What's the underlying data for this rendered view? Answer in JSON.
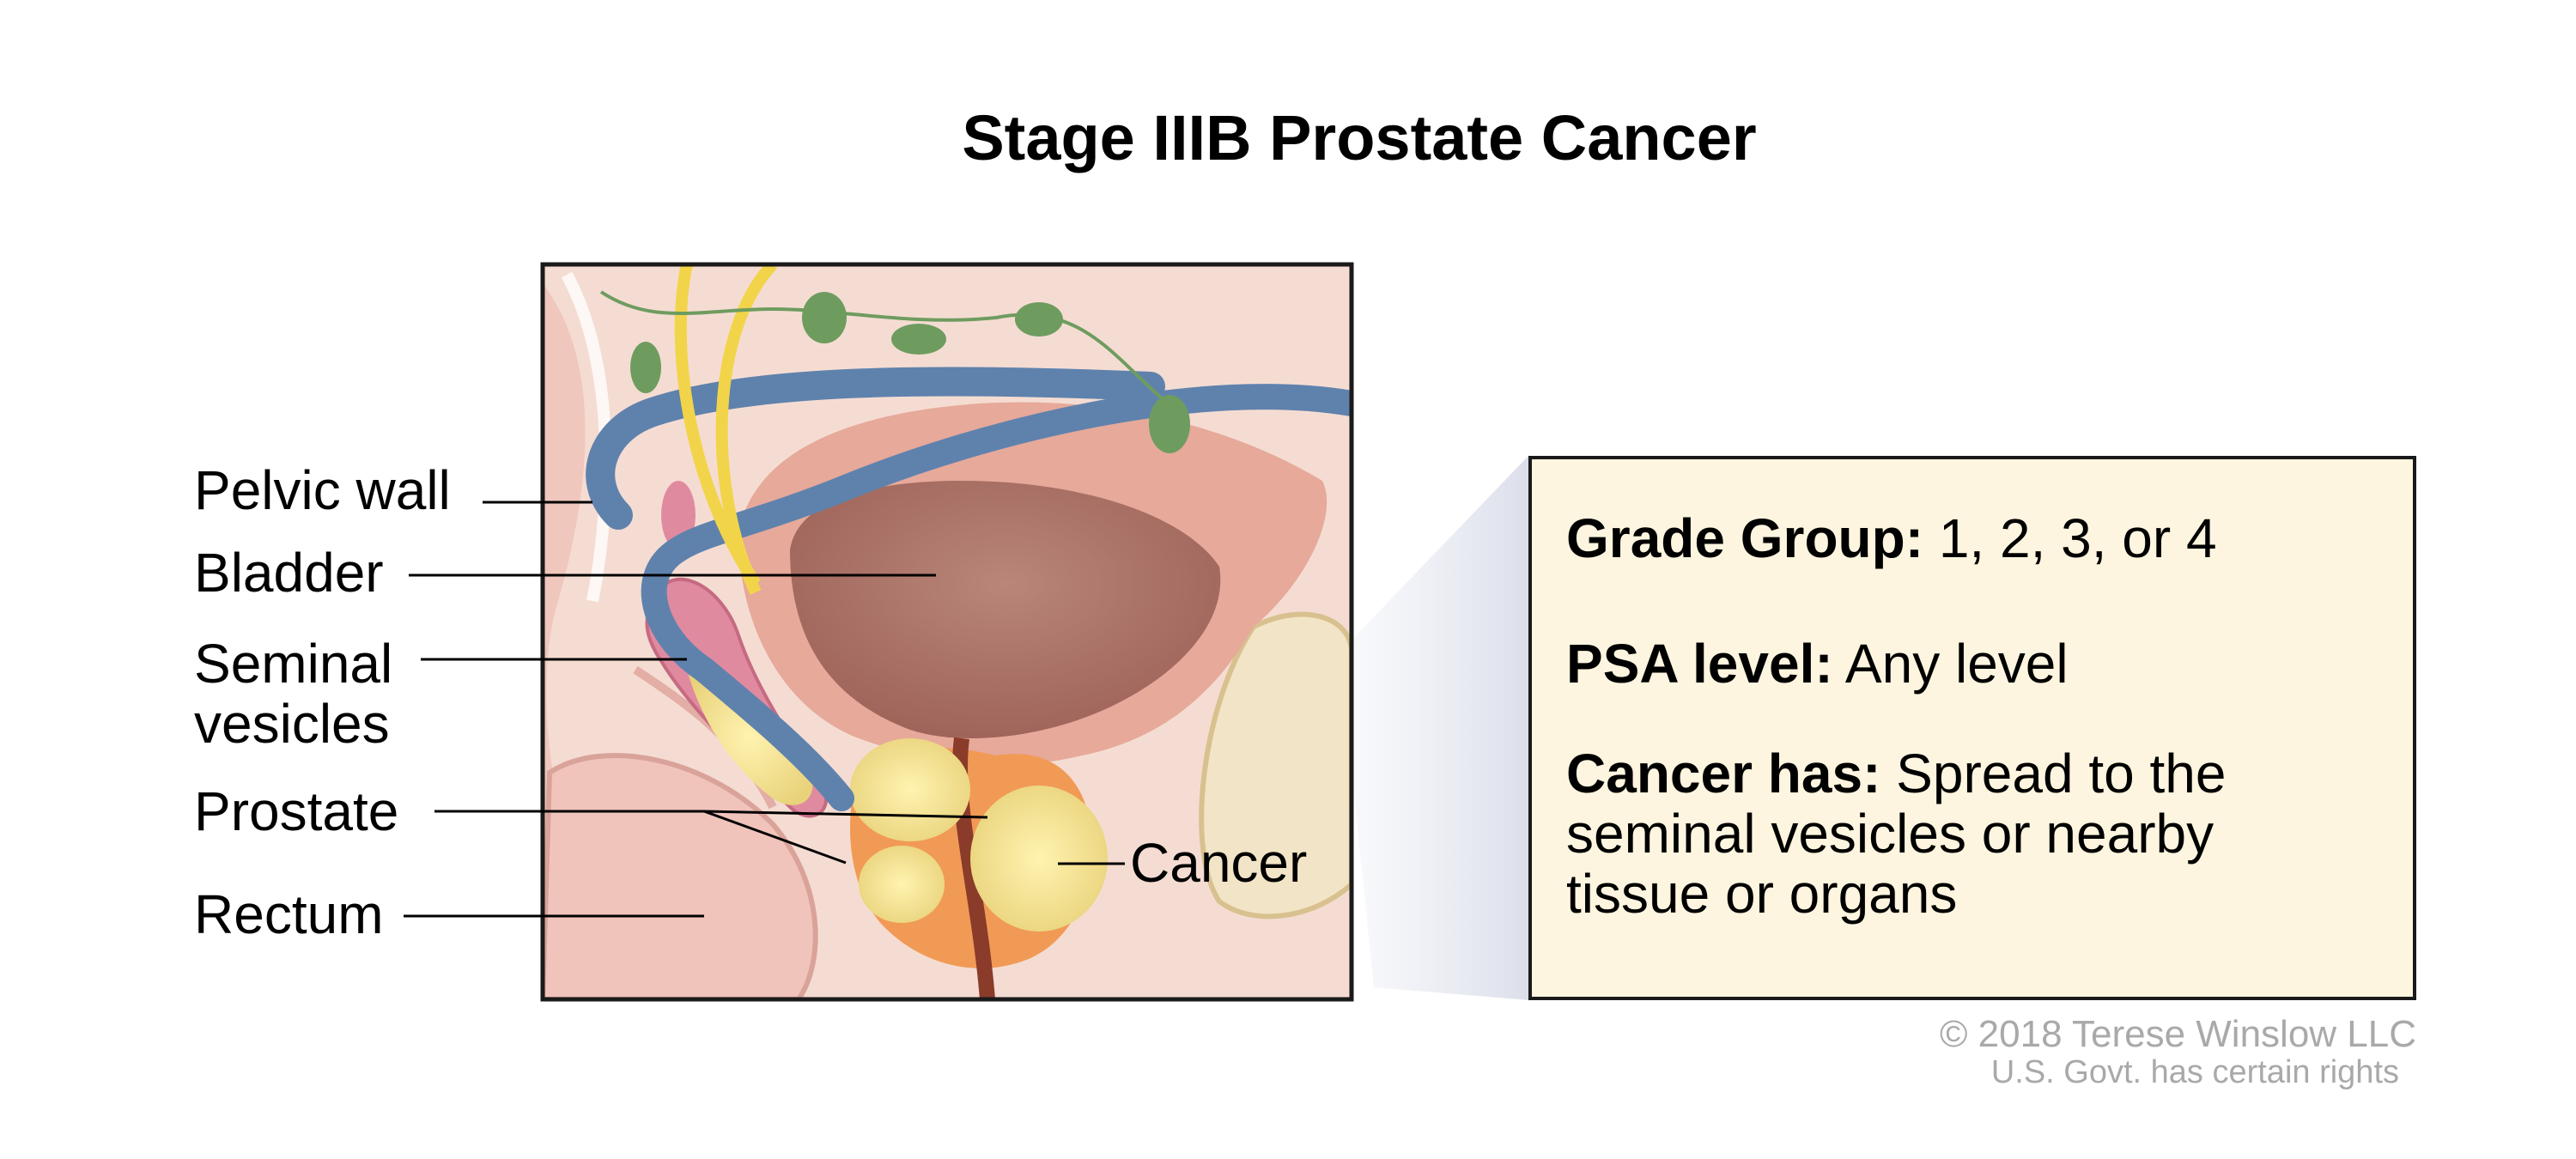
{
  "title": "Stage IIIB Prostate Cancer",
  "labels": {
    "pelvic_wall": "Pelvic wall",
    "bladder": "Bladder",
    "seminal_line1": "Seminal",
    "seminal_line2": "vesicles",
    "prostate": "Prostate",
    "rectum": "Rectum",
    "cancer": "Cancer"
  },
  "info": {
    "grade_label": "Grade Group:",
    "grade_value": " 1, 2, 3, or 4",
    "psa_label": "PSA level:",
    "psa_value": " Any level",
    "cancer_label": "Cancer has:",
    "cancer_value_line1": " Spread to the",
    "cancer_value_line2": "seminal vesicles or nearby",
    "cancer_value_line3": "tissue or organs"
  },
  "credits": {
    "copyright": "© 2018 Terese Winslow LLC",
    "rights": "U.S. Govt. has certain rights"
  },
  "colors": {
    "info_background": "#fdf5df",
    "border": "#1a1a1a",
    "credit_text": "#a9a9a9"
  }
}
